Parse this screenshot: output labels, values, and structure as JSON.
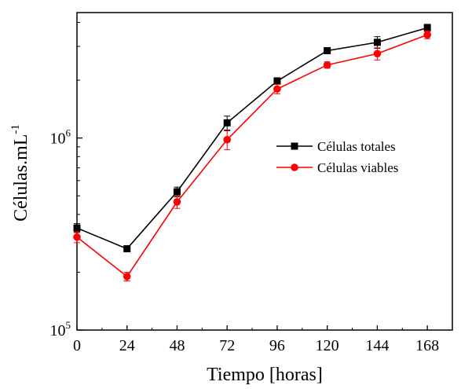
{
  "chart_data": {
    "type": "line",
    "xlabel": "Tiempo [horas]",
    "ylabel_main": "Células.mL",
    "ylabel_sup": "-1",
    "yscale": "log",
    "xlim": [
      0,
      180
    ],
    "ylim": [
      100000,
      4500000
    ],
    "x_ticks": [
      0,
      24,
      48,
      72,
      96,
      120,
      144,
      168
    ],
    "x_tick_labels": [
      "0",
      "24",
      "48",
      "72",
      "96",
      "120",
      "144",
      "168"
    ],
    "y_ticks": [
      {
        "value": 100000,
        "base": "10",
        "exp": "5"
      },
      {
        "value": 1000000,
        "base": "10",
        "exp": "6"
      }
    ],
    "legend_position": "center-right",
    "series": [
      {
        "name": "Células totales",
        "color": "#000000",
        "marker": "square",
        "x": [
          0,
          24,
          48,
          72,
          96,
          120,
          144,
          168
        ],
        "y": [
          340000,
          265000,
          525000,
          1200000,
          1980000,
          2850000,
          3150000,
          3750000
        ],
        "err": [
          18000,
          8000,
          30000,
          100000,
          80000,
          90000,
          220000,
          160000
        ]
      },
      {
        "name": "Células viables",
        "color": "#ff0000",
        "marker": "circle",
        "x": [
          0,
          24,
          48,
          72,
          96,
          120,
          144,
          168
        ],
        "y": [
          305000,
          190000,
          465000,
          980000,
          1800000,
          2400000,
          2750000,
          3450000
        ],
        "err": [
          20000,
          10000,
          35000,
          110000,
          100000,
          90000,
          200000,
          160000
        ]
      }
    ]
  }
}
